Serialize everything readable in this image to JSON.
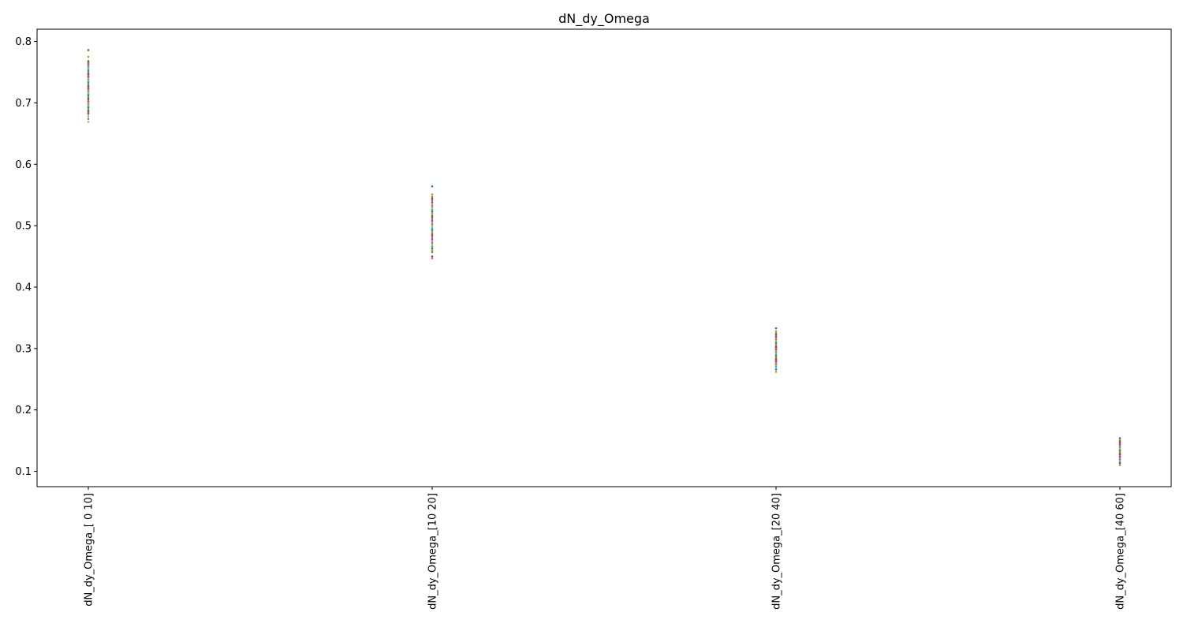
{
  "chart_data": {
    "type": "scatter",
    "title": "dN_dy_Omega",
    "xlabel": "",
    "ylabel": "",
    "categories": [
      "dN_dy_Omega_[ 0 10]",
      "dN_dy_Omega_[10 20]",
      "dN_dy_Omega_[20 40]",
      "dN_dy_Omega_[40 60]"
    ],
    "ylim": [
      0.075,
      0.82
    ],
    "yticks": [
      "0.1",
      "0.2",
      "0.3",
      "0.4",
      "0.5",
      "0.6",
      "0.7",
      "0.8"
    ],
    "grid": false,
    "legend": "none",
    "palette": [
      "#1f77b4",
      "#ff7f0e",
      "#2ca02c",
      "#d62728",
      "#9467bd",
      "#8c564b",
      "#e377c2",
      "#7f7f7f",
      "#bcbd22",
      "#17becf"
    ],
    "samples": [
      [
        0.786,
        0.775,
        0.768,
        0.766,
        0.764,
        0.762,
        0.76,
        0.758,
        0.756,
        0.754,
        0.752,
        0.75,
        0.748,
        0.746,
        0.744,
        0.742,
        0.74,
        0.738,
        0.736,
        0.734,
        0.732,
        0.73,
        0.728,
        0.726,
        0.724,
        0.722,
        0.72,
        0.718,
        0.716,
        0.714,
        0.712,
        0.71,
        0.708,
        0.706,
        0.704,
        0.702,
        0.7,
        0.698,
        0.696,
        0.694,
        0.692,
        0.69,
        0.688,
        0.686,
        0.684,
        0.682,
        0.678,
        0.674,
        0.669
      ],
      [
        0.564,
        0.551,
        0.547,
        0.544,
        0.541,
        0.538,
        0.535,
        0.532,
        0.529,
        0.526,
        0.523,
        0.52,
        0.517,
        0.514,
        0.511,
        0.508,
        0.505,
        0.502,
        0.499,
        0.496,
        0.493,
        0.49,
        0.487,
        0.484,
        0.481,
        0.478,
        0.475,
        0.472,
        0.469,
        0.466,
        0.463,
        0.46,
        0.457,
        0.45,
        0.447
      ],
      [
        0.333,
        0.328,
        0.325,
        0.322,
        0.32,
        0.318,
        0.316,
        0.314,
        0.312,
        0.31,
        0.308,
        0.306,
        0.304,
        0.302,
        0.3,
        0.298,
        0.296,
        0.294,
        0.292,
        0.29,
        0.288,
        0.286,
        0.284,
        0.282,
        0.28,
        0.278,
        0.276,
        0.274,
        0.272,
        0.27,
        0.266,
        0.262
      ],
      [
        0.154,
        0.151,
        0.149,
        0.147,
        0.145,
        0.143,
        0.141,
        0.139,
        0.137,
        0.135,
        0.133,
        0.131,
        0.129,
        0.127,
        0.125,
        0.123,
        0.121,
        0.119,
        0.117,
        0.115,
        0.113,
        0.11
      ]
    ]
  }
}
